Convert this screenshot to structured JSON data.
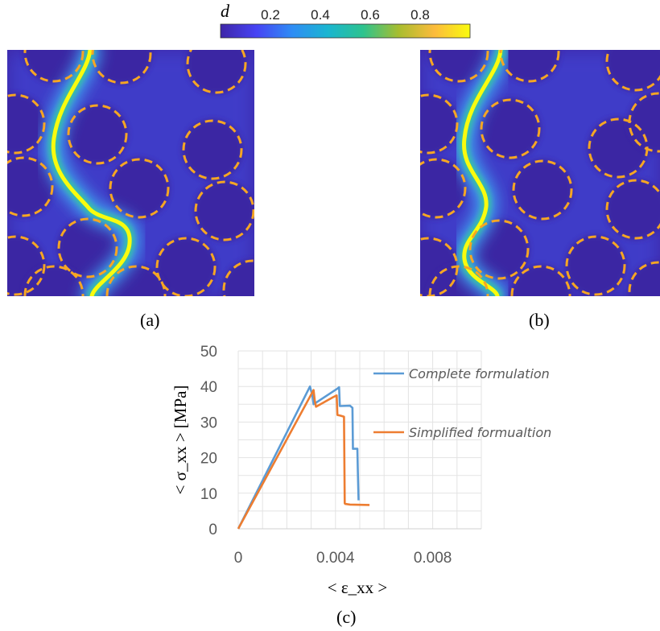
{
  "colorbar": {
    "symbol": "d",
    "ticks": [
      "0.2",
      "0.4",
      "0.6",
      "0.8"
    ],
    "colors": [
      "#3e26a8",
      "#4743f4",
      "#2f8cf5",
      "#1ab5d1",
      "#2dc38e",
      "#a8bd2f",
      "#fcbb3c",
      "#f9fb0e"
    ]
  },
  "panels": {
    "a": "(a)",
    "b": "(b)",
    "c": "(c)"
  },
  "colors": {
    "background_field": "#3d26a5",
    "inclusion_outline": "#f6a623",
    "crack_core": "#f9fb0e"
  },
  "chart_data": {
    "type": "line",
    "xlabel": "< ε_xx >",
    "ylabel": "< σ_xx > [MPa]",
    "xlim": [
      0,
      0.01
    ],
    "ylim": [
      0,
      50
    ],
    "xticks": [
      "0",
      "0.004",
      "0.008"
    ],
    "yticks": [
      "0",
      "10",
      "20",
      "30",
      "40",
      "50"
    ],
    "grid": true,
    "legend": "right",
    "series": [
      {
        "name": "Complete formulation",
        "color": "#5b9bd5",
        "x": [
          0,
          0.00295,
          0.00305,
          0.0031,
          0.0041,
          0.00415,
          0.00418,
          0.0046,
          0.0047,
          0.00472,
          0.0049,
          0.00492,
          0.00495
        ],
        "y": [
          0,
          40,
          37.5,
          35,
          39.5,
          39.8,
          34.5,
          34.6,
          34,
          22.5,
          22.5,
          16,
          8
        ]
      },
      {
        "name": "Simplified formualtion",
        "color": "#ed7d31",
        "x": [
          0,
          0.0031,
          0.00315,
          0.0032,
          0.0039,
          0.00405,
          0.00408,
          0.0042,
          0.00435,
          0.00438,
          0.0044,
          0.0046,
          0.0054
        ],
        "y": [
          0,
          39,
          36,
          34.3,
          37,
          37.5,
          32,
          31.8,
          31.5,
          7.2,
          7,
          6.8,
          6.7
        ]
      }
    ]
  }
}
